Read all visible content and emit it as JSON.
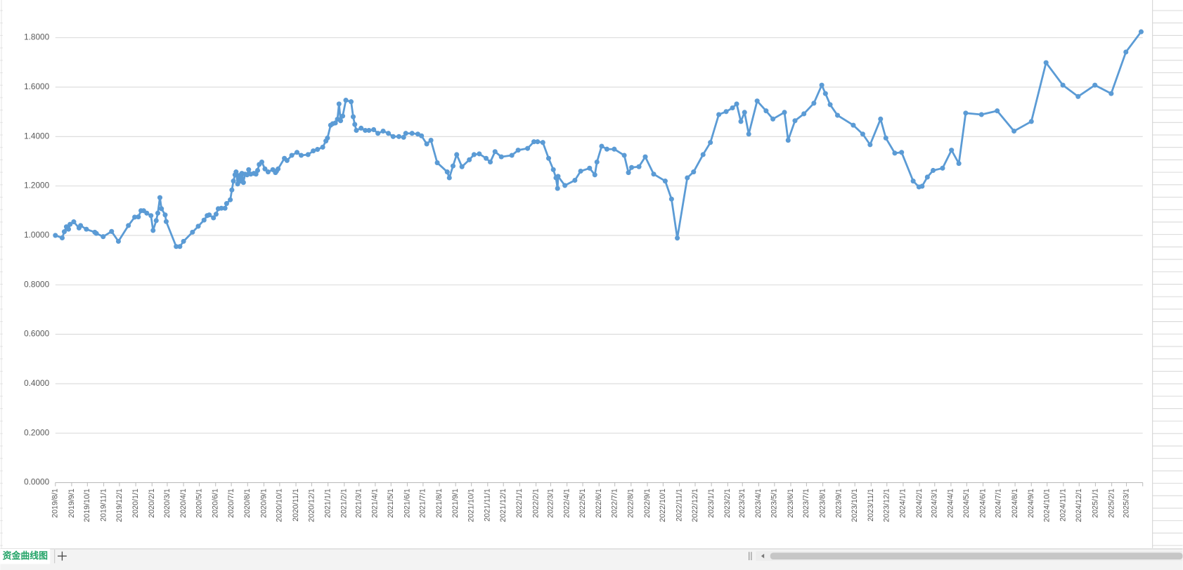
{
  "sheet_tab": "资金曲线图",
  "chart_data": {
    "type": "line",
    "color": "#5b9bd5",
    "grid": true,
    "ylim": [
      0,
      1.8
    ],
    "yticks": [
      {
        "value": 0,
        "label": "0.0000"
      },
      {
        "value": 0.2,
        "label": "0.2000"
      },
      {
        "value": 0.4,
        "label": "0.4000"
      },
      {
        "value": 0.6,
        "label": "0.6000"
      },
      {
        "value": 0.8,
        "label": "0.8000"
      },
      {
        "value": 1,
        "label": "1.0000"
      },
      {
        "value": 1.2,
        "label": "1.2000"
      },
      {
        "value": 1.4,
        "label": "1.4000"
      },
      {
        "value": 1.6,
        "label": "1.6000"
      },
      {
        "value": 1.8,
        "label": "1.8000"
      }
    ],
    "xlim": [
      "2019/8/1",
      "2025/4/1"
    ],
    "xticks": [
      "2019/8/1",
      "2019/9/1",
      "2019/10/1",
      "2019/11/1",
      "2019/12/1",
      "2020/1/1",
      "2020/2/1",
      "2020/3/1",
      "2020/4/1",
      "2020/5/1",
      "2020/6/1",
      "2020/7/1",
      "2020/8/1",
      "2020/9/1",
      "2020/10/1",
      "2020/11/1",
      "2020/12/1",
      "2021/1/1",
      "2021/2/1",
      "2021/3/1",
      "2021/4/1",
      "2021/5/1",
      "2021/6/1",
      "2021/7/1",
      "2021/8/1",
      "2021/9/1",
      "2021/10/1",
      "2021/11/1",
      "2021/12/1",
      "2022/1/1",
      "2022/2/1",
      "2022/3/1",
      "2022/4/1",
      "2022/5/1",
      "2022/6/1",
      "2022/7/1",
      "2022/8/1",
      "2022/9/1",
      "2022/10/1",
      "2022/11/1",
      "2022/12/1",
      "2023/1/1",
      "2023/2/1",
      "2023/3/1",
      "2023/4/1",
      "2023/5/1",
      "2023/6/1",
      "2023/7/1",
      "2023/8/1",
      "2023/9/1",
      "2023/10/1",
      "2023/11/1",
      "2023/12/1",
      "2024/1/1",
      "2024/2/1",
      "2024/3/1",
      "2024/4/1",
      "2024/5/1",
      "2024/6/1",
      "2024/7/1",
      "2024/8/1",
      "2024/9/1",
      "2024/10/1",
      "2024/11/1",
      "2024/12/1",
      "2025/1/1",
      "2025/2/1",
      "2025/3/1"
    ],
    "x": [
      "2019/8/1",
      "2019/8/14",
      "2019/8/18",
      "2019/8/22",
      "2019/8/26",
      "2019/8/29",
      "2019/9/5",
      "2019/9/15",
      "2019/9/18",
      "2019/9/29",
      "2019/10/15",
      "2019/10/18",
      "2019/10/31",
      "2019/11/16",
      "2019/11/29",
      "2019/12/18",
      "2019/12/30",
      "2020/1/6",
      "2020/1/11",
      "2020/1/16",
      "2020/1/22",
      "2020/1/30",
      "2020/2/3",
      "2020/2/9",
      "2020/2/12",
      "2020/2/16",
      "2020/2/19",
      "2020/2/26",
      "2020/2/28",
      "2020/3/18",
      "2020/3/25",
      "2020/4/1",
      "2020/4/18",
      "2020/4/29",
      "2020/5/10",
      "2020/5/16",
      "2020/5/20",
      "2020/5/28",
      "2020/6/2",
      "2020/6/6",
      "2020/6/12",
      "2020/6/19",
      "2020/6/22",
      "2020/6/29",
      "2020/7/2",
      "2020/7/5",
      "2020/7/8",
      "2020/7/10",
      "2020/7/13",
      "2020/7/16",
      "2020/7/19",
      "2020/7/21",
      "2020/7/24",
      "2020/7/27",
      "2020/7/31",
      "2020/8/3",
      "2020/8/7",
      "2020/8/13",
      "2020/8/17",
      "2020/8/20",
      "2020/8/23",
      "2020/8/28",
      "2020/9/3",
      "2020/9/9",
      "2020/9/18",
      "2020/9/23",
      "2020/9/25",
      "2020/9/28",
      "2020/10/10",
      "2020/10/15",
      "2020/10/24",
      "2020/11/3",
      "2020/11/11",
      "2020/11/24",
      "2020/12/4",
      "2020/12/12",
      "2020/12/22",
      "2020/12/28",
      "2020/12/31",
      "2021/1/6",
      "2021/1/10",
      "2021/1/15",
      "2021/1/19",
      "2021/1/22",
      "2021/1/25",
      "2021/1/29",
      "2021/2/4",
      "2021/2/14",
      "2021/2/18",
      "2021/2/21",
      "2021/2/24",
      "2021/3/5",
      "2021/3/13",
      "2021/3/20",
      "2021/3/29",
      "2021/4/6",
      "2021/4/16",
      "2021/4/26",
      "2021/5/5",
      "2021/5/16",
      "2021/5/25",
      "2021/5/29",
      "2021/6/10",
      "2021/6/21",
      "2021/6/28",
      "2021/7/8",
      "2021/7/16",
      "2021/7/28",
      "2021/8/16",
      "2021/8/20",
      "2021/8/27",
      "2021/9/3",
      "2021/9/13",
      "2021/9/27",
      "2021/10/6",
      "2021/10/16",
      "2021/10/29",
      "2021/11/6",
      "2021/11/15",
      "2021/11/27",
      "2021/12/17",
      "2021/12/29",
      "2022/1/16",
      "2022/1/28",
      "2022/2/4",
      "2022/2/14",
      "2022/2/25",
      "2022/3/6",
      "2022/3/11",
      "2022/3/14",
      "2022/3/15",
      "2022/3/28",
      "2022/4/16",
      "2022/4/27",
      "2022/5/14",
      "2022/5/24",
      "2022/5/28",
      "2022/6/6",
      "2022/6/16",
      "2022/6/30",
      "2022/7/19",
      "2022/7/27",
      "2022/8/2",
      "2022/8/16",
      "2022/8/28",
      "2022/9/13",
      "2022/10/5",
      "2022/10/17",
      "2022/10/28",
      "2022/11/16",
      "2022/11/28",
      "2022/12/16",
      "2022/12/30",
      "2023/1/15",
      "2023/1/29",
      "2023/2/10",
      "2023/2/18",
      "2023/2/26",
      "2023/3/5",
      "2023/3/13",
      "2023/3/29",
      "2023/4/15",
      "2023/4/28",
      "2023/5/20",
      "2023/5/27",
      "2023/6/9",
      "2023/6/26",
      "2023/7/15",
      "2023/7/30",
      "2023/8/6",
      "2023/8/15",
      "2023/8/29",
      "2023/9/28",
      "2023/10/16",
      "2023/10/30",
      "2023/11/19",
      "2023/11/29",
      "2023/12/16",
      "2023/12/29",
      "2024/1/20",
      "2024/1/31",
      "2024/2/6",
      "2024/2/16",
      "2024/2/27",
      "2024/3/16",
      "2024/4/2",
      "2024/4/16",
      "2024/4/29",
      "2024/5/29",
      "2024/6/28",
      "2024/7/30",
      "2024/9/1",
      "2024/9/29",
      "2024/10/31",
      "2024/11/29",
      "2024/12/31",
      "2025/1/31",
      "2025/2/28",
      "2025/3/29"
    ],
    "values": [
      1.0,
      0.99,
      1.015,
      1.035,
      1.025,
      1.045,
      1.055,
      1.03,
      1.04,
      1.025,
      1.013,
      1.008,
      0.995,
      1.016,
      0.976,
      1.04,
      1.074,
      1.075,
      1.1,
      1.1,
      1.09,
      1.08,
      1.02,
      1.06,
      1.09,
      1.153,
      1.108,
      1.083,
      1.056,
      0.955,
      0.955,
      0.976,
      1.013,
      1.037,
      1.062,
      1.08,
      1.083,
      1.071,
      1.086,
      1.108,
      1.11,
      1.11,
      1.129,
      1.144,
      1.184,
      1.22,
      1.245,
      1.257,
      1.208,
      1.242,
      1.22,
      1.251,
      1.214,
      1.248,
      1.245,
      1.266,
      1.248,
      1.251,
      1.248,
      1.263,
      1.287,
      1.297,
      1.269,
      1.257,
      1.266,
      1.254,
      1.26,
      1.269,
      1.312,
      1.303,
      1.324,
      1.336,
      1.324,
      1.327,
      1.342,
      1.348,
      1.357,
      1.382,
      1.394,
      1.446,
      1.452,
      1.455,
      1.47,
      1.532,
      1.464,
      1.483,
      1.547,
      1.541,
      1.48,
      1.449,
      1.425,
      1.434,
      1.425,
      1.425,
      1.428,
      1.413,
      1.422,
      1.413,
      1.4,
      1.4,
      1.397,
      1.413,
      1.413,
      1.41,
      1.403,
      1.37,
      1.385,
      1.294,
      1.257,
      1.233,
      1.281,
      1.327,
      1.278,
      1.306,
      1.327,
      1.33,
      1.312,
      1.297,
      1.339,
      1.318,
      1.324,
      1.345,
      1.352,
      1.379,
      1.379,
      1.376,
      1.312,
      1.266,
      1.233,
      1.19,
      1.239,
      1.202,
      1.223,
      1.26,
      1.272,
      1.245,
      1.297,
      1.361,
      1.349,
      1.349,
      1.324,
      1.254,
      1.275,
      1.278,
      1.318,
      1.248,
      1.22,
      1.147,
      0.989,
      1.233,
      1.257,
      1.327,
      1.376,
      1.489,
      1.501,
      1.516,
      1.532,
      1.461,
      1.498,
      1.41,
      1.544,
      1.504,
      1.471,
      1.498,
      1.385,
      1.464,
      1.492,
      1.535,
      1.608,
      1.574,
      1.529,
      1.486,
      1.446,
      1.41,
      1.367,
      1.471,
      1.394,
      1.333,
      1.336,
      1.22,
      1.196,
      1.199,
      1.236,
      1.263,
      1.272,
      1.345,
      1.291,
      1.495,
      1.489,
      1.504,
      1.422,
      1.461,
      1.699,
      1.608,
      1.562,
      1.608,
      1.574,
      1.742,
      1.824
    ]
  }
}
